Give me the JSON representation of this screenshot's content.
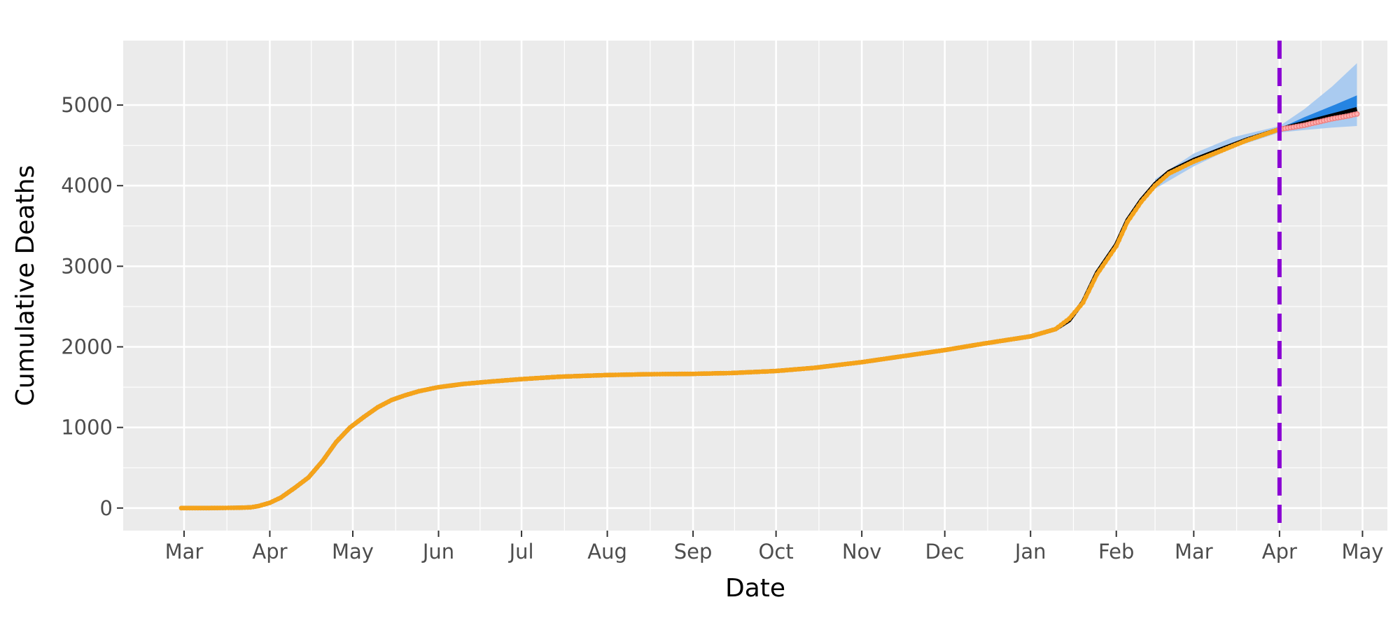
{
  "chart_data": {
    "type": "line",
    "title": "",
    "xlabel": "Date",
    "ylabel": "Cumulative Deaths",
    "x_tick_labels": [
      "Mar",
      "Apr",
      "May",
      "Jun",
      "Jul",
      "Aug",
      "Sep",
      "Oct",
      "Nov",
      "Dec",
      "Jan",
      "Feb",
      "Mar",
      "Apr",
      "May"
    ],
    "x_tick_dates": [
      "2020-03-01",
      "2020-04-01",
      "2020-05-01",
      "2020-06-01",
      "2020-07-01",
      "2020-08-01",
      "2020-09-01",
      "2020-10-01",
      "2020-11-01",
      "2020-12-01",
      "2021-01-01",
      "2021-02-01",
      "2021-03-01",
      "2021-04-01",
      "2021-05-01"
    ],
    "y_ticks": [
      0,
      1000,
      2000,
      3000,
      4000,
      5000
    ],
    "y_tick_labels": [
      "0",
      "1000",
      "2000",
      "3000",
      "4000",
      "5000"
    ],
    "xlim": [
      "2020-02-08",
      "2021-05-10"
    ],
    "ylim": [
      -280,
      5800
    ],
    "grid": true,
    "background": "#ebebeb",
    "forecast_start": "2021-04-01",
    "series": [
      {
        "role": "observed",
        "color": "#f5a31a",
        "x": [
          "2020-02-29",
          "2020-03-10",
          "2020-03-20",
          "2020-03-25",
          "2020-03-28",
          "2020-04-01",
          "2020-04-05",
          "2020-04-10",
          "2020-04-15",
          "2020-04-20",
          "2020-04-25",
          "2020-04-30",
          "2020-05-05",
          "2020-05-10",
          "2020-05-15",
          "2020-05-20",
          "2020-05-25",
          "2020-06-01",
          "2020-06-10",
          "2020-06-20",
          "2020-07-01",
          "2020-07-15",
          "2020-08-01",
          "2020-08-15",
          "2020-09-01",
          "2020-09-15",
          "2020-10-01",
          "2020-10-15",
          "2020-11-01",
          "2020-11-15",
          "2020-12-01",
          "2020-12-15",
          "2021-01-01",
          "2021-01-10",
          "2021-01-15",
          "2021-01-20",
          "2021-01-25",
          "2021-02-01",
          "2021-02-05",
          "2021-02-10",
          "2021-02-15",
          "2021-02-20",
          "2021-03-01",
          "2021-03-10",
          "2021-03-20",
          "2021-04-01"
        ],
        "y": [
          0,
          0,
          3,
          8,
          25,
          65,
          130,
          250,
          380,
          580,
          820,
          1000,
          1130,
          1250,
          1340,
          1400,
          1450,
          1500,
          1540,
          1570,
          1600,
          1630,
          1650,
          1660,
          1665,
          1675,
          1700,
          1740,
          1810,
          1880,
          1960,
          2040,
          2130,
          2220,
          2350,
          2550,
          2900,
          3250,
          3550,
          3800,
          4000,
          4150,
          4300,
          4420,
          4560,
          4700
        ]
      },
      {
        "role": "fitted",
        "color": "#000000",
        "x": [
          "2020-02-29",
          "2020-03-10",
          "2020-03-20",
          "2020-03-25",
          "2020-03-28",
          "2020-04-01",
          "2020-04-05",
          "2020-04-10",
          "2020-04-15",
          "2020-04-20",
          "2020-04-25",
          "2020-04-30",
          "2020-05-05",
          "2020-05-10",
          "2020-05-15",
          "2020-05-20",
          "2020-05-25",
          "2020-06-01",
          "2020-06-10",
          "2020-06-20",
          "2020-07-01",
          "2020-07-15",
          "2020-08-01",
          "2020-08-15",
          "2020-09-01",
          "2020-09-15",
          "2020-10-01",
          "2020-10-15",
          "2020-11-01",
          "2020-11-15",
          "2020-12-01",
          "2020-12-15",
          "2021-01-01",
          "2021-01-10",
          "2021-01-15",
          "2021-01-20",
          "2021-01-25",
          "2021-02-01",
          "2021-02-05",
          "2021-02-10",
          "2021-02-15",
          "2021-02-20",
          "2021-03-01",
          "2021-03-10",
          "2021-03-20",
          "2021-04-01",
          "2021-04-29"
        ],
        "y": [
          0,
          0,
          3,
          8,
          25,
          65,
          130,
          250,
          380,
          580,
          820,
          1000,
          1130,
          1250,
          1340,
          1400,
          1450,
          1500,
          1540,
          1570,
          1600,
          1630,
          1650,
          1660,
          1665,
          1675,
          1700,
          1740,
          1810,
          1880,
          1960,
          2040,
          2130,
          2220,
          2330,
          2560,
          2920,
          3270,
          3570,
          3820,
          4020,
          4170,
          4320,
          4440,
          4570,
          4700,
          4950
        ]
      },
      {
        "role": "forecast-observed",
        "color": "#f08080",
        "x": [
          "2021-04-01",
          "2021-04-05",
          "2021-04-10",
          "2021-04-15",
          "2021-04-20",
          "2021-04-25",
          "2021-04-29"
        ],
        "y": [
          4700,
          4720,
          4750,
          4790,
          4830,
          4860,
          4890
        ]
      }
    ],
    "bands": [
      {
        "role": "outer-interval",
        "color": "#a7c9f0",
        "x": [
          "2021-02-15",
          "2021-03-01",
          "2021-03-15",
          "2021-04-01",
          "2021-04-10",
          "2021-04-20",
          "2021-04-29"
        ],
        "lower": [
          3960,
          4240,
          4470,
          4660,
          4690,
          4720,
          4740
        ],
        "upper": [
          4080,
          4400,
          4600,
          4740,
          4950,
          5230,
          5520
        ]
      },
      {
        "role": "inner-interval",
        "color": "#1e7fe0",
        "x": [
          "2021-04-01",
          "2021-04-10",
          "2021-04-20",
          "2021-04-29"
        ],
        "lower": [
          4700,
          4760,
          4830,
          4880
        ],
        "upper": [
          4710,
          4850,
          4990,
          5120
        ]
      }
    ],
    "vline": {
      "x": "2021-04-01",
      "color": "#8a00d4",
      "style": "dashed"
    }
  }
}
